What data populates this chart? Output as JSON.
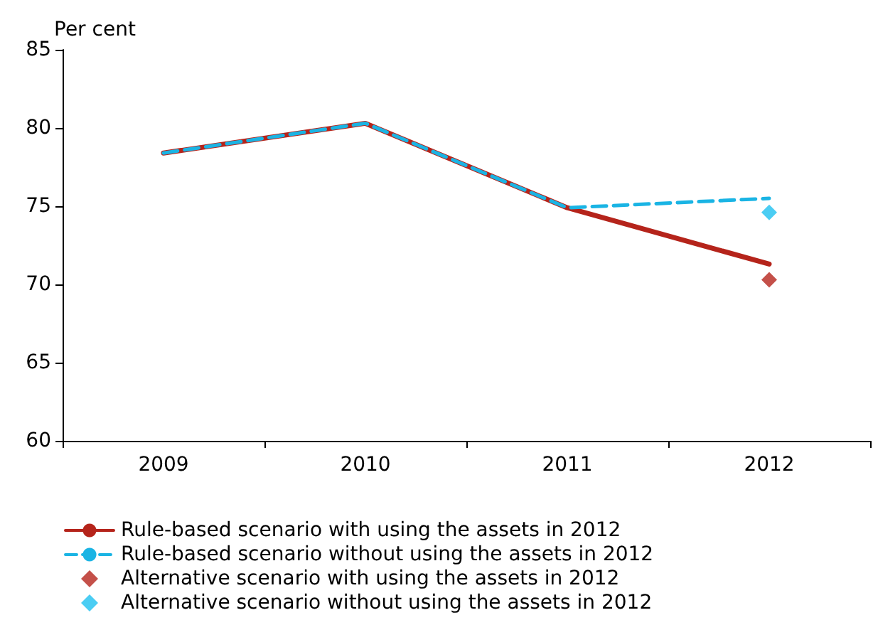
{
  "chart_data": {
    "type": "line",
    "ylabel": "Per cent",
    "categories": [
      "2009",
      "2010",
      "2011",
      "2012"
    ],
    "ylim": [
      60,
      85
    ],
    "yticks": [
      60,
      65,
      70,
      75,
      80,
      85
    ],
    "grid": false,
    "legend": "bottom",
    "marker": "none",
    "series": [
      {
        "name": "Rule-based scenario with using the assets in 2012",
        "color": "#b5241b",
        "values": [
          78.4,
          80.3,
          74.9,
          71.3
        ],
        "line_style": "solid"
      },
      {
        "name": "Rule-based scenario without using the assets in 2012",
        "color": "#1ab4e4",
        "values": [
          78.4,
          80.3,
          74.9,
          75.5
        ],
        "line_style": "dashed"
      },
      {
        "name": "Alternative scenario with using the assets in 2012",
        "type": "scatter",
        "marker": "diamond",
        "color": "#b5241b",
        "values": [
          null,
          null,
          null,
          70.3
        ]
      },
      {
        "name": "Alternative scenario without using the assets in 2012",
        "type": "scatter",
        "marker": "diamond",
        "color": "#1ec0f0",
        "values": [
          null,
          null,
          null,
          74.6
        ]
      }
    ]
  }
}
